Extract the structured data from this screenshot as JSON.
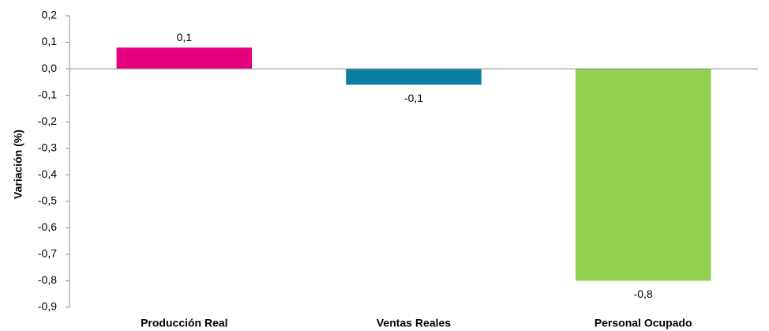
{
  "chart_data": {
    "type": "bar",
    "title": "",
    "xlabel": "",
    "ylabel": "Variación (%)",
    "categories": [
      "Producción Real",
      "Ventas Reales",
      "Personal Ocupado"
    ],
    "values": [
      0.08,
      -0.06,
      -0.8
    ],
    "data_labels": [
      "0,1",
      "-0,1",
      "-0,8"
    ],
    "bar_colors": [
      "#e6007e",
      "#0a7ea3",
      "#92d050"
    ],
    "ylim": [
      -0.9,
      0.2
    ],
    "yticks": [
      0.2,
      0.1,
      0.0,
      -0.1,
      -0.2,
      -0.3,
      -0.4,
      -0.5,
      -0.6,
      -0.7,
      -0.8,
      -0.9
    ],
    "ytick_labels": [
      "0,2",
      "0,1",
      "0,0",
      "-0,1",
      "-0,2",
      "-0,3",
      "-0,4",
      "-0,5",
      "-0,6",
      "-0,7",
      "-0,8",
      "-0,9"
    ],
    "grid": false,
    "legend": "none"
  }
}
